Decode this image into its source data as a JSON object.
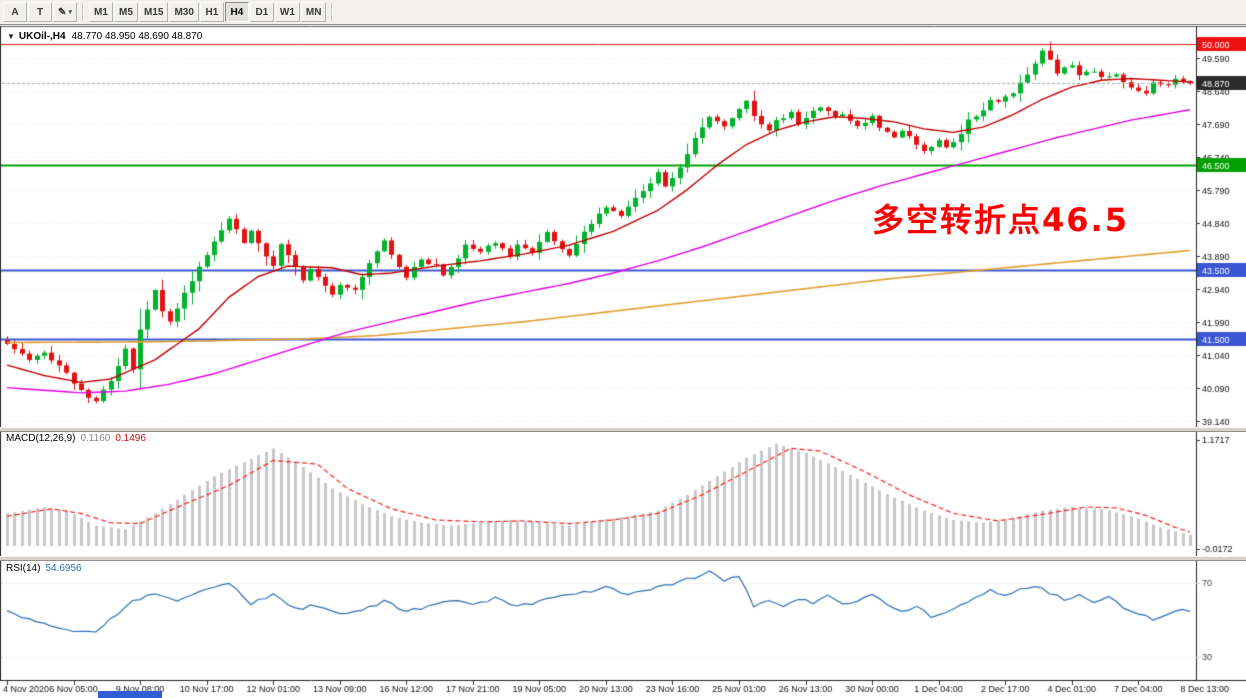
{
  "toolbar": {
    "left_buttons": [
      {
        "label": "A"
      },
      {
        "label": "T"
      },
      {
        "label": "✎"
      }
    ],
    "dropdown_arrow": "▾",
    "timeframes": [
      {
        "label": "M1",
        "active": false
      },
      {
        "label": "M5",
        "active": false
      },
      {
        "label": "M15",
        "active": false
      },
      {
        "label": "M30",
        "active": false
      },
      {
        "label": "H1",
        "active": false
      },
      {
        "label": "H4",
        "active": true
      },
      {
        "label": "D1",
        "active": false
      },
      {
        "label": "W1",
        "active": false
      },
      {
        "label": "MN",
        "active": false
      }
    ]
  },
  "chart": {
    "title_marker": "▼",
    "symbol_title": "UKOil-,H4",
    "ohlc_text": "48.770 48.950 48.690 48.870",
    "annotation": {
      "text": "多空转折点46.5",
      "color": "#ff0000"
    }
  },
  "indicators": {
    "macd": {
      "label": "MACD(12,26,9)",
      "value1": "0.1160",
      "value2": "0.1496"
    },
    "rsi": {
      "label": "RSI(14)",
      "value": "54.6956"
    }
  },
  "chart_data": {
    "type": "candlestick",
    "symbol": "UKOil-",
    "timeframe": "H4",
    "title": "UKOil-,H4 48.770 48.950 48.690 48.870",
    "ohlc_display": {
      "open": "48.770",
      "high": "48.950",
      "low": "48.690",
      "close": "48.870"
    },
    "candles_n": 161,
    "colors": {
      "up": "#00b22c",
      "down": "#e11212",
      "ma_fast": "#c00000",
      "ma_mid": "#e200e2",
      "ma_slow": "#e0a030",
      "macd_hist": "#c8c8c8",
      "macd_signal": "#ff2020",
      "rsi": "#2e6db4",
      "grid": "#ebebeb",
      "bid_line": "#aaaaaa"
    },
    "price_axis": {
      "ticks": [
        "49.590",
        "48.640",
        "47.690",
        "46.740",
        "45.790",
        "44.840",
        "43.890",
        "42.940",
        "41.990",
        "41.040",
        "40.090",
        "39.140"
      ]
    },
    "current_price": {
      "value": 48.87,
      "label": "48.870",
      "box_color": "#2b2b2b"
    },
    "levels": [
      {
        "price": 50.0,
        "label": "50.000",
        "color": "#ee1111",
        "width": 1
      },
      {
        "price": 46.5,
        "label": "46.500",
        "color": "#00a000",
        "width": 2
      },
      {
        "price": 43.5,
        "label": "43.500",
        "color": "#3a56d4",
        "width": 2
      },
      {
        "price": 41.5,
        "label": "41.500",
        "color": "#3a56d4",
        "width": 2
      }
    ],
    "annotation": {
      "text": "多空转折点46.5",
      "price_level": 46.5
    },
    "close_anchors": [
      [
        0,
        41.35
      ],
      [
        3,
        40.9
      ],
      [
        5,
        41.1
      ],
      [
        8,
        40.5
      ],
      [
        10,
        40.0
      ],
      [
        12,
        39.7
      ],
      [
        14,
        40.3
      ],
      [
        16,
        41.2
      ],
      [
        17,
        40.6
      ],
      [
        18,
        41.8
      ],
      [
        20,
        42.9
      ],
      [
        21,
        42.3
      ],
      [
        22,
        42.0
      ],
      [
        24,
        42.8
      ],
      [
        26,
        43.6
      ],
      [
        28,
        44.3
      ],
      [
        29,
        44.6
      ],
      [
        30,
        45.0
      ],
      [
        32,
        44.3
      ],
      [
        33,
        44.6
      ],
      [
        35,
        43.9
      ],
      [
        36,
        43.6
      ],
      [
        37,
        44.2
      ],
      [
        39,
        43.6
      ],
      [
        40,
        43.2
      ],
      [
        41,
        43.5
      ],
      [
        43,
        43.0
      ],
      [
        44,
        42.8
      ],
      [
        45,
        43.1
      ],
      [
        47,
        42.9
      ],
      [
        48,
        43.3
      ],
      [
        50,
        44.0
      ],
      [
        51,
        44.3
      ],
      [
        53,
        43.6
      ],
      [
        54,
        43.3
      ],
      [
        56,
        43.8
      ],
      [
        58,
        43.6
      ],
      [
        59,
        43.3
      ],
      [
        61,
        43.8
      ],
      [
        62,
        44.2
      ],
      [
        64,
        44.0
      ],
      [
        66,
        44.3
      ],
      [
        68,
        43.9
      ],
      [
        69,
        44.2
      ],
      [
        71,
        44.0
      ],
      [
        73,
        44.6
      ],
      [
        74,
        44.3
      ],
      [
        76,
        43.9
      ],
      [
        78,
        44.6
      ],
      [
        80,
        45.1
      ],
      [
        81,
        45.3
      ],
      [
        83,
        45.0
      ],
      [
        85,
        45.6
      ],
      [
        87,
        46.0
      ],
      [
        88,
        46.3
      ],
      [
        89,
        45.9
      ],
      [
        91,
        46.4
      ],
      [
        93,
        47.3
      ],
      [
        94,
        47.6
      ],
      [
        95,
        47.9
      ],
      [
        97,
        47.6
      ],
      [
        98,
        47.9
      ],
      [
        100,
        48.4
      ],
      [
        101,
        47.9
      ],
      [
        103,
        47.5
      ],
      [
        104,
        47.8
      ],
      [
        106,
        48.0
      ],
      [
        107,
        47.7
      ],
      [
        109,
        48.1
      ],
      [
        110,
        48.2
      ],
      [
        112,
        47.9
      ],
      [
        113,
        48.0
      ],
      [
        115,
        47.6
      ],
      [
        117,
        47.9
      ],
      [
        118,
        47.6
      ],
      [
        120,
        47.3
      ],
      [
        121,
        47.5
      ],
      [
        123,
        47.1
      ],
      [
        124,
        46.9
      ],
      [
        126,
        47.2
      ],
      [
        127,
        47.0
      ],
      [
        129,
        47.4
      ],
      [
        130,
        47.8
      ],
      [
        132,
        48.1
      ],
      [
        133,
        48.4
      ],
      [
        134,
        48.3
      ],
      [
        136,
        48.6
      ],
      [
        137,
        48.9
      ],
      [
        139,
        49.4
      ],
      [
        140,
        49.8
      ],
      [
        141,
        49.5
      ],
      [
        142,
        49.15
      ],
      [
        144,
        49.4
      ],
      [
        145,
        49.1
      ],
      [
        147,
        49.2
      ],
      [
        148,
        49.0
      ],
      [
        150,
        49.15
      ],
      [
        151,
        48.9
      ],
      [
        152,
        48.75
      ],
      [
        154,
        48.6
      ],
      [
        155,
        48.9
      ],
      [
        157,
        48.8
      ],
      [
        158,
        48.95
      ],
      [
        160,
        48.87
      ]
    ],
    "ma_fast_anchors": [
      [
        0,
        40.75
      ],
      [
        5,
        40.45
      ],
      [
        10,
        40.25
      ],
      [
        14,
        40.35
      ],
      [
        20,
        40.9
      ],
      [
        26,
        41.8
      ],
      [
        30,
        42.7
      ],
      [
        34,
        43.3
      ],
      [
        38,
        43.6
      ],
      [
        44,
        43.55
      ],
      [
        48,
        43.35
      ],
      [
        52,
        43.4
      ],
      [
        58,
        43.6
      ],
      [
        64,
        43.75
      ],
      [
        70,
        43.95
      ],
      [
        76,
        44.2
      ],
      [
        82,
        44.6
      ],
      [
        88,
        45.2
      ],
      [
        92,
        45.8
      ],
      [
        96,
        46.5
      ],
      [
        100,
        47.1
      ],
      [
        104,
        47.5
      ],
      [
        108,
        47.75
      ],
      [
        112,
        47.9
      ],
      [
        116,
        47.85
      ],
      [
        120,
        47.75
      ],
      [
        124,
        47.55
      ],
      [
        128,
        47.45
      ],
      [
        132,
        47.6
      ],
      [
        136,
        47.95
      ],
      [
        140,
        48.4
      ],
      [
        144,
        48.75
      ],
      [
        148,
        48.95
      ],
      [
        152,
        49.0
      ],
      [
        156,
        48.95
      ],
      [
        160,
        48.9
      ]
    ],
    "ma_mid_anchors": [
      [
        0,
        40.1
      ],
      [
        10,
        39.95
      ],
      [
        16,
        40.0
      ],
      [
        22,
        40.2
      ],
      [
        28,
        40.5
      ],
      [
        34,
        40.9
      ],
      [
        40,
        41.3
      ],
      [
        46,
        41.7
      ],
      [
        52,
        42.0
      ],
      [
        58,
        42.3
      ],
      [
        64,
        42.6
      ],
      [
        70,
        42.85
      ],
      [
        76,
        43.1
      ],
      [
        82,
        43.4
      ],
      [
        88,
        43.75
      ],
      [
        94,
        44.15
      ],
      [
        100,
        44.6
      ],
      [
        106,
        45.05
      ],
      [
        112,
        45.5
      ],
      [
        118,
        45.9
      ],
      [
        124,
        46.25
      ],
      [
        130,
        46.6
      ],
      [
        136,
        46.95
      ],
      [
        142,
        47.3
      ],
      [
        148,
        47.6
      ],
      [
        152,
        47.8
      ],
      [
        156,
        47.95
      ],
      [
        160,
        48.1
      ]
    ],
    "ma_slow_anchors": [
      [
        0,
        41.4
      ],
      [
        20,
        41.42
      ],
      [
        40,
        41.5
      ],
      [
        50,
        41.6
      ],
      [
        60,
        41.8
      ],
      [
        70,
        42.0
      ],
      [
        80,
        42.25
      ],
      [
        90,
        42.5
      ],
      [
        100,
        42.75
      ],
      [
        110,
        43.0
      ],
      [
        120,
        43.25
      ],
      [
        130,
        43.45
      ],
      [
        140,
        43.65
      ],
      [
        150,
        43.85
      ],
      [
        160,
        44.05
      ]
    ],
    "macd": {
      "label": "MACD(12,26,9)",
      "values": [
        0.116,
        0.1496
      ],
      "axis_labels": [
        "1.1717",
        "-0.0172"
      ],
      "hist_anchors": [
        [
          0,
          0.35
        ],
        [
          5,
          0.42
        ],
        [
          8,
          0.38
        ],
        [
          12,
          0.22
        ],
        [
          16,
          0.18
        ],
        [
          20,
          0.35
        ],
        [
          24,
          0.55
        ],
        [
          28,
          0.75
        ],
        [
          32,
          0.9
        ],
        [
          36,
          1.05
        ],
        [
          40,
          0.85
        ],
        [
          44,
          0.62
        ],
        [
          48,
          0.45
        ],
        [
          52,
          0.32
        ],
        [
          56,
          0.25
        ],
        [
          60,
          0.22
        ],
        [
          64,
          0.25
        ],
        [
          68,
          0.28
        ],
        [
          72,
          0.25
        ],
        [
          76,
          0.22
        ],
        [
          80,
          0.28
        ],
        [
          84,
          0.32
        ],
        [
          88,
          0.38
        ],
        [
          92,
          0.55
        ],
        [
          96,
          0.75
        ],
        [
          100,
          0.95
        ],
        [
          104,
          1.1
        ],
        [
          108,
          1.0
        ],
        [
          112,
          0.85
        ],
        [
          116,
          0.68
        ],
        [
          120,
          0.52
        ],
        [
          124,
          0.38
        ],
        [
          128,
          0.28
        ],
        [
          132,
          0.25
        ],
        [
          136,
          0.3
        ],
        [
          140,
          0.38
        ],
        [
          144,
          0.42
        ],
        [
          148,
          0.4
        ],
        [
          152,
          0.32
        ],
        [
          156,
          0.2
        ],
        [
          160,
          0.12
        ]
      ],
      "signal_anchors": [
        [
          0,
          0.32
        ],
        [
          6,
          0.4
        ],
        [
          10,
          0.35
        ],
        [
          14,
          0.25
        ],
        [
          18,
          0.24
        ],
        [
          24,
          0.45
        ],
        [
          30,
          0.65
        ],
        [
          36,
          0.92
        ],
        [
          42,
          0.88
        ],
        [
          46,
          0.62
        ],
        [
          52,
          0.4
        ],
        [
          58,
          0.28
        ],
        [
          64,
          0.26
        ],
        [
          70,
          0.27
        ],
        [
          76,
          0.24
        ],
        [
          82,
          0.28
        ],
        [
          88,
          0.35
        ],
        [
          94,
          0.55
        ],
        [
          100,
          0.8
        ],
        [
          106,
          1.05
        ],
        [
          110,
          1.02
        ],
        [
          116,
          0.8
        ],
        [
          122,
          0.55
        ],
        [
          128,
          0.35
        ],
        [
          134,
          0.27
        ],
        [
          140,
          0.34
        ],
        [
          146,
          0.42
        ],
        [
          150,
          0.41
        ],
        [
          154,
          0.33
        ],
        [
          158,
          0.2
        ],
        [
          160,
          0.15
        ]
      ]
    },
    "rsi": {
      "label": "RSI(14)",
      "value": 54.6956,
      "levels": [
        70,
        30
      ],
      "anchors": [
        [
          0,
          55
        ],
        [
          3,
          50
        ],
        [
          6,
          47
        ],
        [
          9,
          44
        ],
        [
          12,
          43
        ],
        [
          14,
          50
        ],
        [
          17,
          60
        ],
        [
          20,
          65
        ],
        [
          23,
          61
        ],
        [
          26,
          66
        ],
        [
          30,
          70
        ],
        [
          33,
          59
        ],
        [
          36,
          64
        ],
        [
          39,
          56
        ],
        [
          42,
          58
        ],
        [
          45,
          53
        ],
        [
          48,
          55
        ],
        [
          51,
          60
        ],
        [
          54,
          55
        ],
        [
          57,
          57
        ],
        [
          60,
          61
        ],
        [
          63,
          58
        ],
        [
          66,
          62
        ],
        [
          69,
          57
        ],
        [
          72,
          60
        ],
        [
          75,
          63
        ],
        [
          78,
          65
        ],
        [
          81,
          68
        ],
        [
          84,
          64
        ],
        [
          87,
          67
        ],
        [
          90,
          70
        ],
        [
          93,
          73
        ],
        [
          95,
          76
        ],
        [
          97,
          72
        ],
        [
          99,
          74
        ],
        [
          101,
          58
        ],
        [
          103,
          60
        ],
        [
          105,
          57
        ],
        [
          107,
          62
        ],
        [
          109,
          59
        ],
        [
          111,
          63
        ],
        [
          113,
          58
        ],
        [
          115,
          61
        ],
        [
          117,
          64
        ],
        [
          119,
          58
        ],
        [
          121,
          55
        ],
        [
          123,
          57
        ],
        [
          125,
          52
        ],
        [
          127,
          54
        ],
        [
          129,
          58
        ],
        [
          131,
          63
        ],
        [
          133,
          66
        ],
        [
          135,
          64
        ],
        [
          137,
          67
        ],
        [
          139,
          69
        ],
        [
          141,
          65
        ],
        [
          143,
          61
        ],
        [
          145,
          64
        ],
        [
          147,
          60
        ],
        [
          149,
          63
        ],
        [
          151,
          57
        ],
        [
          153,
          54
        ],
        [
          155,
          50
        ],
        [
          157,
          53
        ],
        [
          159,
          56
        ],
        [
          160,
          54.7
        ]
      ]
    },
    "time_labels": [
      "4 Nov 2020",
      "6 Nov 05:00",
      "9 Nov 08:00",
      "10 Nov 17:00",
      "12 Nov 01:00",
      "13 Nov 09:00",
      "16 Nov 12:00",
      "17 Nov 21:00",
      "19 Nov 05:00",
      "20 Nov 13:00",
      "23 Nov 16:00",
      "25 Nov 01:00",
      "26 Nov 13:00",
      "30 Nov 00:00",
      "1 Dec 04:00",
      "2 Dec 17:00",
      "4 Dec 01:00",
      "7 Dec 04:00",
      "8 Dec 13:00"
    ]
  }
}
